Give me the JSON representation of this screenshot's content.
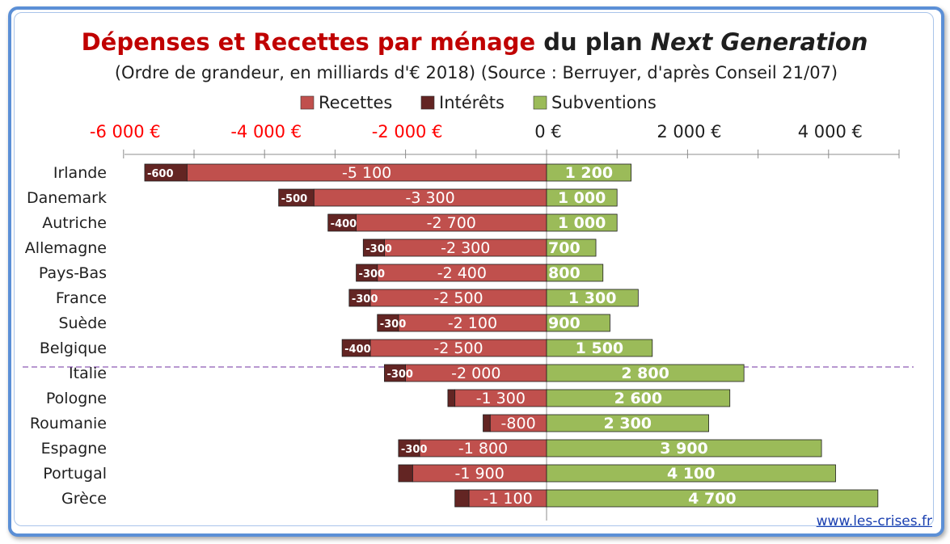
{
  "title": {
    "part1": "Dépenses et Recettes par ménage",
    "part2": " du plan ",
    "part3": "Next Generation"
  },
  "subtitle": "(Ordre de grandeur, en milliards d'€ 2018) (Source : Berruyer, d'après Conseil 21/07)",
  "url": "www.les-crises.fr",
  "colors": {
    "recettes": "#c0504d",
    "interets": "#632523",
    "subventions": "#9bbb59",
    "negative_tick": "#ff0000",
    "positive_tick": "#1f1f1f"
  },
  "chart_data": {
    "type": "bar",
    "orientation": "horizontal",
    "stacked": true,
    "xlim": [
      -6000,
      5000
    ],
    "tick_labels": [
      "-6 000 €",
      "-4 000 €",
      "-2 000 €",
      "0 €",
      "2 000 €",
      "4 000 €"
    ],
    "tick_values": [
      -6000,
      -4000,
      -2000,
      0,
      2000,
      4000
    ],
    "legend_position": "top",
    "categories": [
      "Irlande",
      "Danemark",
      "Autriche",
      "Allemagne",
      "Pays-Bas",
      "France",
      "Suède",
      "Belgique",
      "Italie",
      "Pologne",
      "Roumanie",
      "Espagne",
      "Portugal",
      "Grèce"
    ],
    "series": [
      {
        "name": "Recettes",
        "values": [
          -5100,
          -3300,
          -2700,
          -2300,
          -2400,
          -2500,
          -2100,
          -2500,
          -2000,
          -1300,
          -800,
          -1800,
          -1900,
          -1100
        ],
        "labels": [
          "-5 100",
          "-3 300",
          "-2 700",
          "-2 300",
          "-2 400",
          "-2 500",
          "-2 100",
          "-2 500",
          "-2 000",
          "-1 300",
          "-800",
          "-1 800",
          "-1 900",
          "-1 100"
        ]
      },
      {
        "name": "Intérêts",
        "values": [
          -600,
          -500,
          -400,
          -300,
          -300,
          -300,
          -300,
          -400,
          -300,
          -100,
          -100,
          -300,
          -200,
          -200
        ],
        "labels": [
          "-600",
          "-500",
          "-400",
          "-300",
          "-300",
          "-300",
          "-300",
          "-400",
          "-300",
          "",
          "",
          "-300",
          "",
          ""
        ]
      },
      {
        "name": "Subventions",
        "values": [
          1200,
          1000,
          1000,
          700,
          800,
          1300,
          900,
          1500,
          2800,
          2600,
          2300,
          3900,
          4100,
          4700
        ],
        "labels": [
          "1 200",
          "1 000",
          "1 000",
          "700",
          "800",
          "1 300",
          "900",
          "1 500",
          "2 800",
          "2 600",
          "2 300",
          "3 900",
          "4 100",
          "4 700"
        ]
      }
    ],
    "separator_after_index": 7
  }
}
